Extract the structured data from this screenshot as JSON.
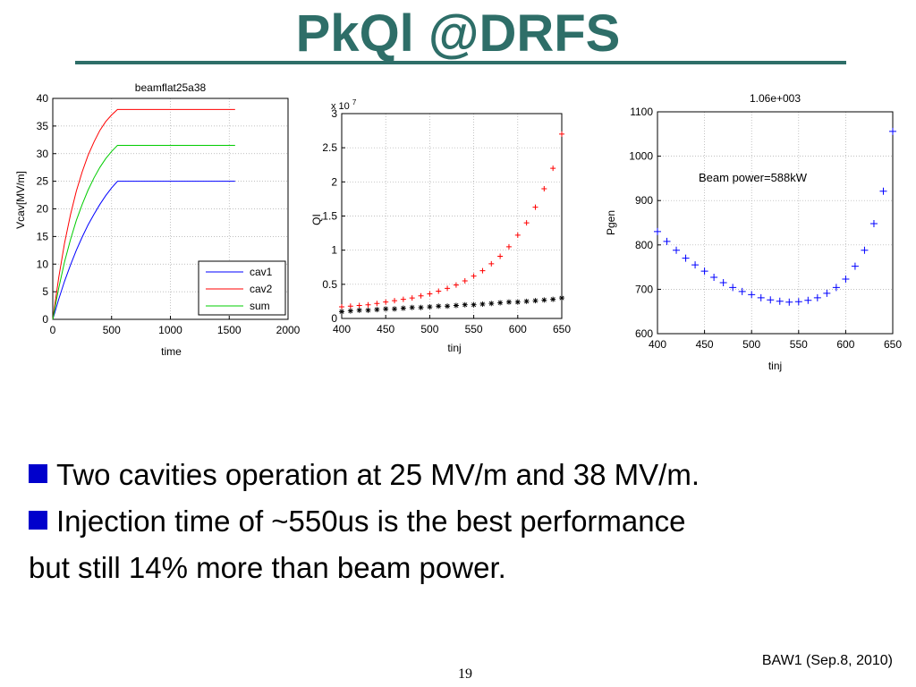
{
  "slide": {
    "title": "PkQl @DRFS",
    "title_color": "#2e6e68",
    "bullet_color": "#0000cc",
    "bullets": [
      "Two cavities operation at 25 MV/m and 38 MV/m.",
      "Injection time of ~550us is the best performance",
      "but still 14% more than  beam power."
    ],
    "footer": "BAW1 (Sep.8, 2010)",
    "page_number": "19"
  },
  "chart_data": [
    {
      "type": "line",
      "title": "beamflat25a38",
      "xlabel": "time",
      "ylabel": "Vcav[MV/m]",
      "xlim": [
        0,
        2000
      ],
      "ylim": [
        0,
        40
      ],
      "xticks": [
        0,
        500,
        1000,
        1500,
        2000
      ],
      "yticks": [
        0,
        5,
        10,
        15,
        20,
        25,
        30,
        35,
        40
      ],
      "grid": true,
      "legend_position": "bottom-right",
      "series": [
        {
          "name": "cav1",
          "color": "#0000ff",
          "x": [
            0,
            50,
            100,
            150,
            200,
            250,
            300,
            350,
            400,
            450,
            500,
            550,
            1550
          ],
          "y": [
            0,
            3.6,
            6.9,
            9.8,
            12.5,
            14.9,
            17.1,
            19.0,
            20.8,
            22.4,
            23.8,
            25,
            25
          ]
        },
        {
          "name": "cav2",
          "color": "#ff0000",
          "x": [
            0,
            50,
            100,
            150,
            200,
            250,
            300,
            350,
            400,
            450,
            500,
            550,
            1550
          ],
          "y": [
            0,
            7.5,
            13.8,
            18.9,
            23.2,
            26.7,
            29.7,
            32.1,
            34.2,
            35.8,
            37.0,
            38,
            38
          ]
        },
        {
          "name": "sum",
          "color": "#00cc00",
          "x": [
            0,
            50,
            100,
            150,
            200,
            250,
            300,
            350,
            400,
            450,
            500,
            550,
            1550
          ],
          "y": [
            0,
            5.6,
            10.4,
            14.4,
            17.9,
            20.8,
            23.4,
            25.6,
            27.5,
            29.1,
            30.4,
            31.5,
            31.5
          ]
        }
      ]
    },
    {
      "type": "scatter",
      "title": "",
      "xlabel": "tinj",
      "ylabel": "QI",
      "exponent_label": "x 10",
      "exponent_power": "7",
      "xlim": [
        400,
        650
      ],
      "ylim": [
        0,
        3
      ],
      "xticks": [
        400,
        450,
        500,
        550,
        600,
        650
      ],
      "ytick_labels": [
        "0",
        "0.5",
        "1",
        "1.5",
        "2",
        "2.5",
        "3"
      ],
      "grid": true,
      "series": [
        {
          "color": "#ff0000",
          "marker": "+",
          "x": [
            400,
            410,
            420,
            430,
            440,
            450,
            460,
            470,
            480,
            490,
            500,
            510,
            520,
            530,
            540,
            550,
            560,
            570,
            580,
            590,
            600,
            610,
            620,
            630,
            640,
            650
          ],
          "y": [
            0.17,
            0.18,
            0.19,
            0.2,
            0.22,
            0.24,
            0.26,
            0.28,
            0.3,
            0.33,
            0.36,
            0.4,
            0.44,
            0.49,
            0.55,
            0.62,
            0.7,
            0.8,
            0.91,
            1.05,
            1.22,
            1.4,
            1.63,
            1.9,
            2.2,
            2.7
          ]
        },
        {
          "color": "#000000",
          "marker": "*",
          "x": [
            400,
            410,
            420,
            430,
            440,
            450,
            460,
            470,
            480,
            490,
            500,
            510,
            520,
            530,
            540,
            550,
            560,
            570,
            580,
            590,
            600,
            610,
            620,
            630,
            640,
            650
          ],
          "y": [
            0.1,
            0.11,
            0.12,
            0.12,
            0.13,
            0.14,
            0.14,
            0.15,
            0.16,
            0.16,
            0.17,
            0.18,
            0.18,
            0.19,
            0.2,
            0.2,
            0.21,
            0.22,
            0.23,
            0.24,
            0.24,
            0.25,
            0.26,
            0.27,
            0.28,
            0.3
          ]
        }
      ]
    },
    {
      "type": "scatter",
      "title": "1.06e+003",
      "xlabel": "tinj",
      "ylabel": "Pgen",
      "annotation": "Beam power=588kW",
      "xlim": [
        400,
        650
      ],
      "ylim": [
        600,
        1100
      ],
      "xticks": [
        400,
        450,
        500,
        550,
        600,
        650
      ],
      "yticks": [
        600,
        700,
        800,
        900,
        1000,
        1100
      ],
      "grid": true,
      "series": [
        {
          "color": "#0000ff",
          "marker": "+",
          "x": [
            400,
            410,
            420,
            430,
            440,
            450,
            460,
            470,
            480,
            490,
            500,
            510,
            520,
            530,
            540,
            550,
            560,
            570,
            580,
            590,
            600,
            610,
            620,
            630,
            640,
            650
          ],
          "y": [
            830,
            808,
            788,
            770,
            755,
            741,
            727,
            715,
            704,
            695,
            688,
            681,
            676,
            673,
            671,
            672,
            675,
            681,
            691,
            704,
            723,
            752,
            788,
            848,
            921,
            1056
          ]
        }
      ]
    }
  ]
}
